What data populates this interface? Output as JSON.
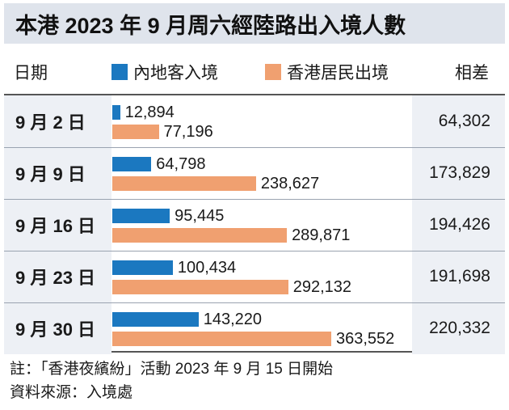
{
  "title": "本港 2023 年 9 月周六經陸路出入境人數",
  "header": {
    "date_label": "日期",
    "diff_label": "相差"
  },
  "colors": {
    "mainland": "#1b78c0",
    "resident": "#f0a070",
    "date_bg": "#edf0f5",
    "title_bg": "#dfe4ec"
  },
  "chart_data": {
    "type": "bar",
    "orientation": "horizontal",
    "title": "本港 2023 年 9 月周六經陸路出入境人數",
    "categories": [
      "9 月 2 日",
      "9 月 9 日",
      "9 月 16 日",
      "9 月 23 日",
      "9 月 30 日"
    ],
    "series": [
      {
        "name": "內地客入境",
        "values": [
          12894,
          64798,
          95445,
          100434,
          143220
        ],
        "labels": [
          "12,894",
          "64,798",
          "95,445",
          "100,434",
          "143,220"
        ]
      },
      {
        "name": "香港居民出境",
        "values": [
          77196,
          238627,
          289871,
          292132,
          363552
        ],
        "labels": [
          "77,196",
          "238,627",
          "289,871",
          "292,132",
          "363,552"
        ]
      }
    ],
    "difference": [
      64302,
      173829,
      194426,
      191698,
      220332
    ],
    "difference_labels": [
      "64,302",
      "173,829",
      "194,426",
      "191,698",
      "220,332"
    ],
    "xlim": [
      0,
      363552
    ]
  },
  "footer": {
    "note": "註：「香港夜繽紛」活動 2023 年 9 月 15 日開始",
    "source": "資料來源：入境處"
  }
}
